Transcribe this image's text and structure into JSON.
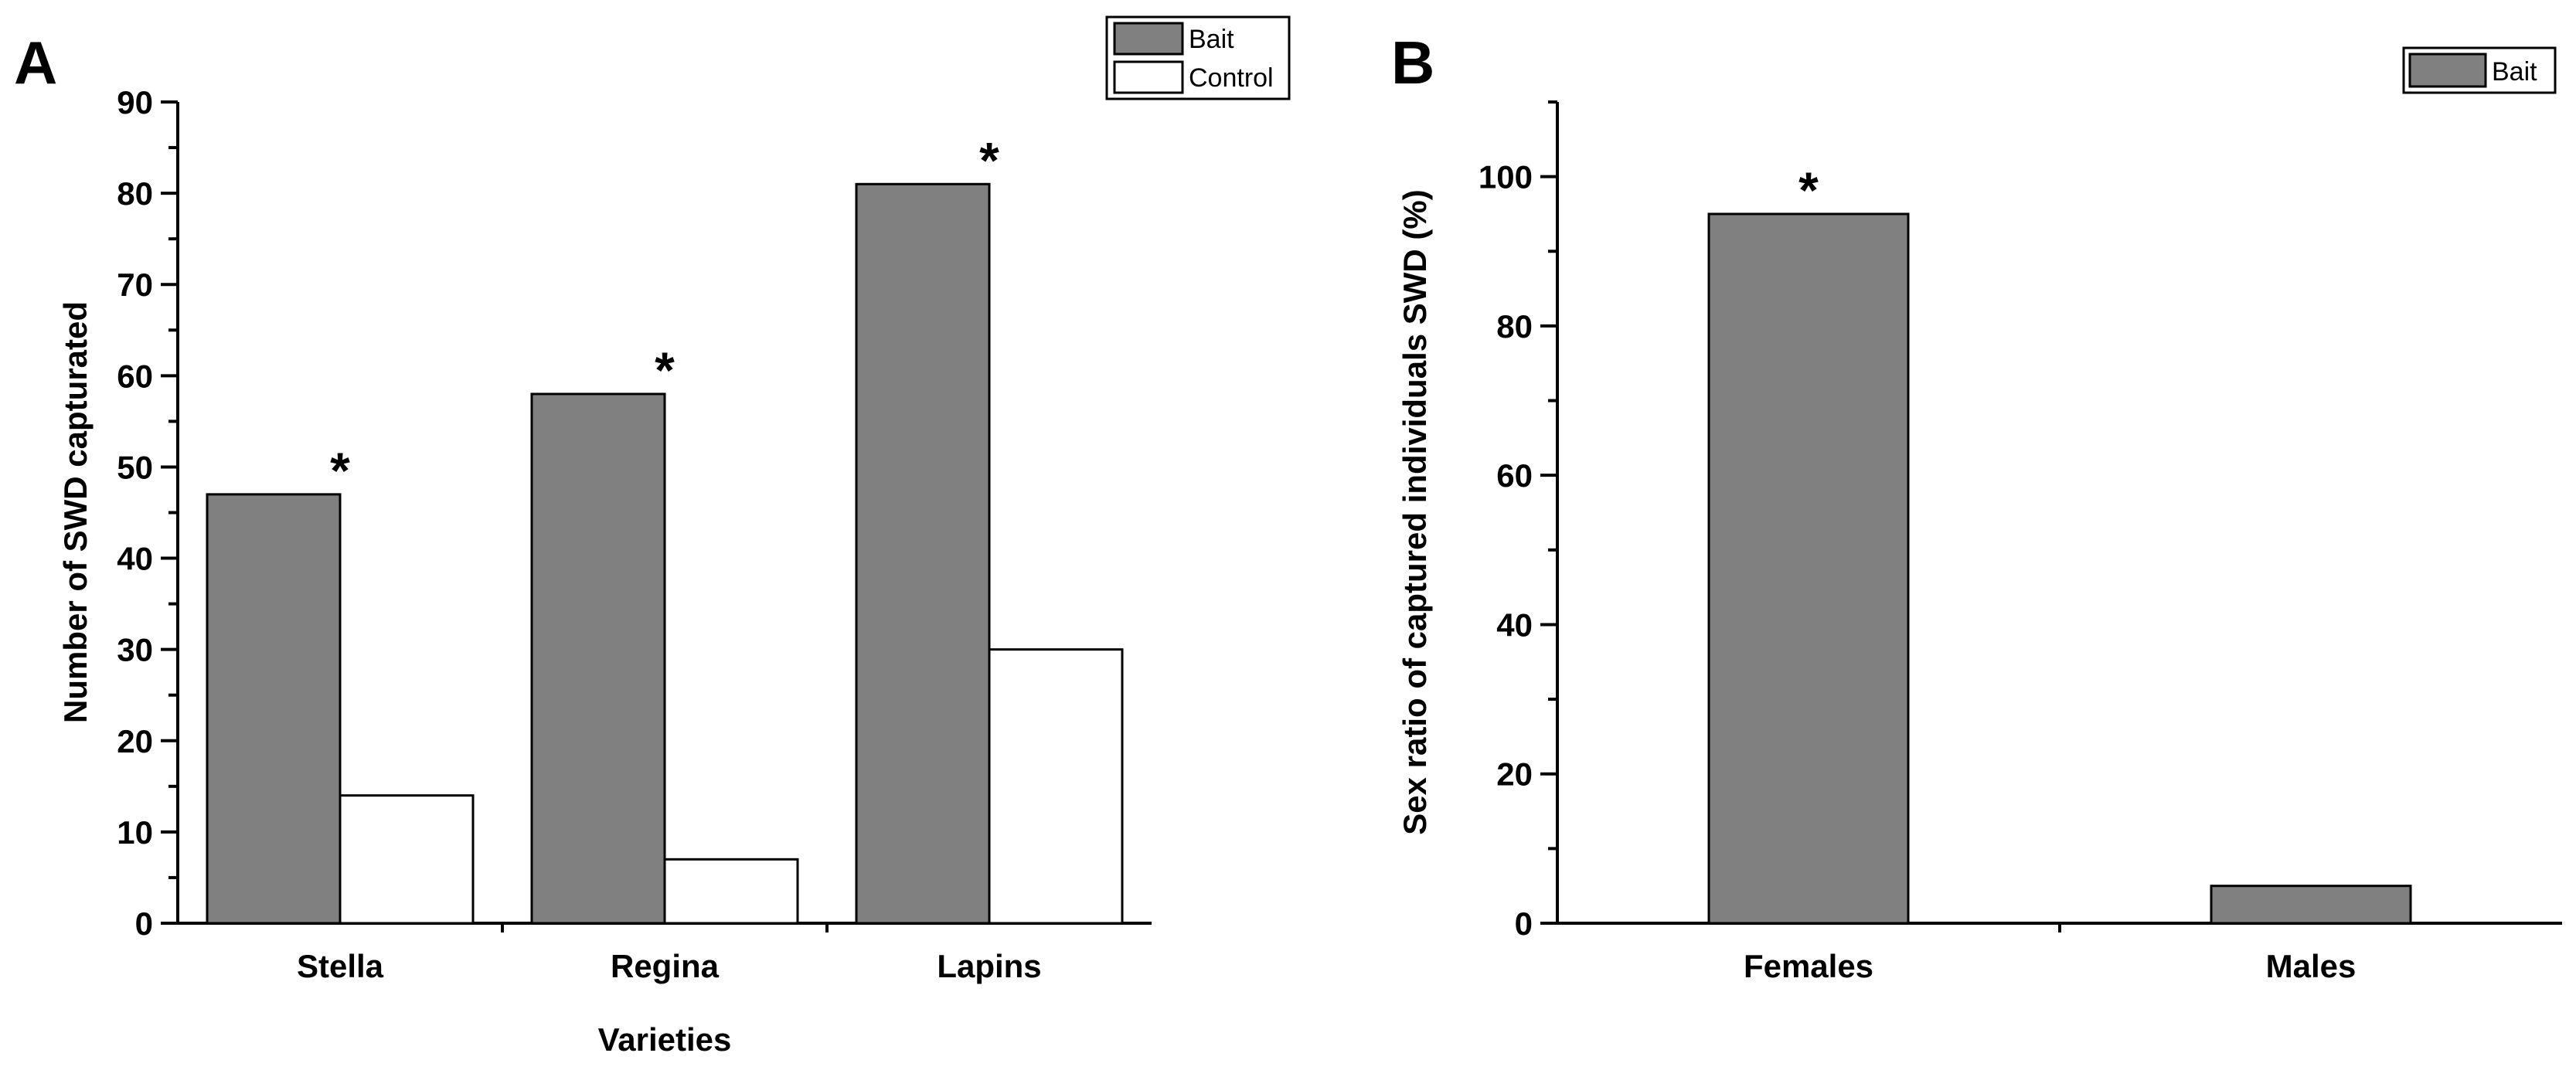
{
  "chart_data": [
    {
      "panel": "A",
      "type": "bar",
      "categories": [
        "Stella",
        "Regina",
        "Lapins"
      ],
      "series": [
        {
          "name": "Bait",
          "values": [
            47,
            58,
            81
          ],
          "color": "#808080"
        },
        {
          "name": "Control",
          "values": [
            14,
            7,
            30
          ],
          "color": "#ffffff"
        }
      ],
      "significance": [
        "*",
        "*",
        "*"
      ],
      "xlabel": "Varieties",
      "ylabel": "Number of SWD capturated",
      "ylim": [
        0,
        90
      ],
      "yticks": [
        0,
        10,
        20,
        30,
        40,
        50,
        60,
        70,
        80,
        90
      ],
      "grid": false,
      "legend": "top-right"
    },
    {
      "panel": "B",
      "type": "bar",
      "categories": [
        "Females",
        "Males"
      ],
      "series": [
        {
          "name": "Bait",
          "values": [
            95,
            5
          ],
          "color": "#808080"
        }
      ],
      "significance": [
        "*",
        ""
      ],
      "xlabel": "",
      "ylabel": "Sex ratio of captured individuals SWD (%)",
      "ylim": [
        0,
        110
      ],
      "yticks": [
        0,
        20,
        40,
        60,
        80,
        100
      ],
      "grid": false,
      "legend": "top-right"
    }
  ]
}
